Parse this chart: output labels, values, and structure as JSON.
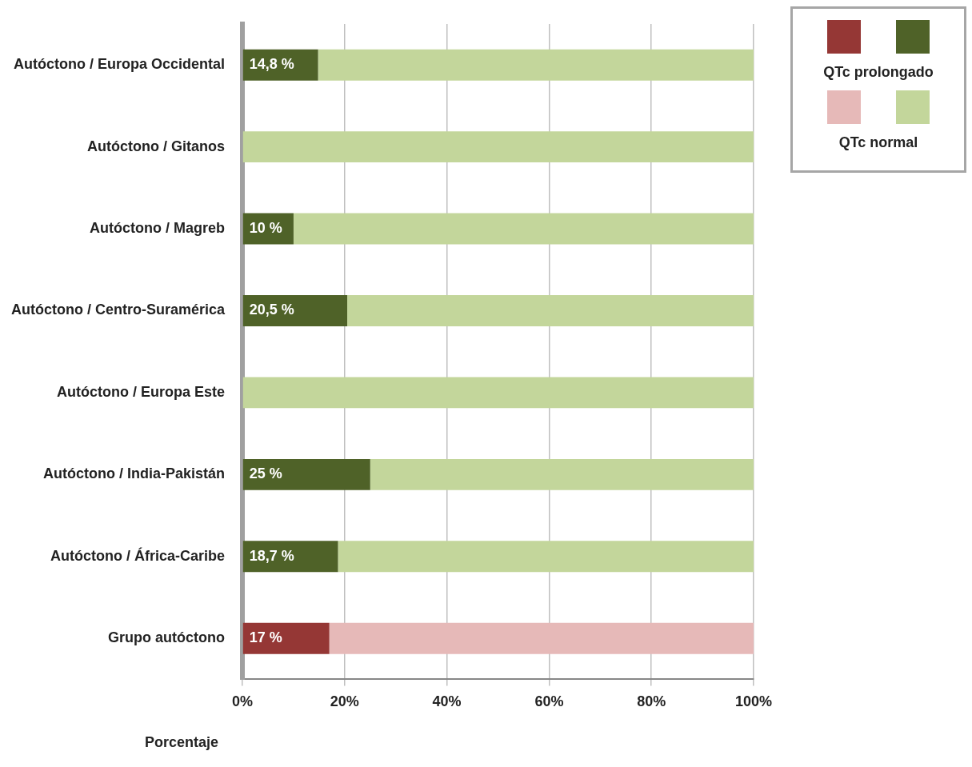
{
  "chart_data": {
    "type": "bar",
    "orientation": "horizontal",
    "stacked": true,
    "xlabel": "Porcentaje",
    "categories": [
      "Autóctono / Europa Occidental",
      "Autóctono / Gitanos",
      "Autóctono / Magreb",
      "Autóctono / Centro-Suramérica",
      "Autóctono / Europa Este",
      "Autóctono / India-Pakistán",
      "Autóctono / África-Caribe",
      "Grupo autóctono"
    ],
    "series": [
      {
        "name": "QTc prolongado",
        "colors": [
          "#4f6228",
          "#4f6228",
          "#4f6228",
          "#4f6228",
          "#4f6228",
          "#4f6228",
          "#4f6228",
          "#953735"
        ],
        "values": [
          14.8,
          0,
          10,
          20.5,
          0,
          25,
          18.7,
          17
        ],
        "value_labels": [
          "14,8 %",
          null,
          "10 %",
          "20,5 %",
          null,
          "25 %",
          "18,7 %",
          "17 %"
        ]
      },
      {
        "name": "QTc normal",
        "colors": [
          "#c3d69b",
          "#c3d69b",
          "#c3d69b",
          "#c3d69b",
          "#c3d69b",
          "#c3d69b",
          "#c3d69b",
          "#e6b9b8"
        ],
        "values": [
          85.2,
          100,
          90,
          79.5,
          100,
          75,
          81.3,
          83
        ]
      }
    ],
    "xlim": [
      0,
      100
    ],
    "xticks": [
      {
        "value": 0,
        "label": "0%"
      },
      {
        "value": 20,
        "label": "20%"
      },
      {
        "value": 40,
        "label": "40%"
      },
      {
        "value": 60,
        "label": "60%"
      },
      {
        "value": 80,
        "label": "80%"
      },
      {
        "value": 100,
        "label": "100%"
      }
    ],
    "grid": "x",
    "legend": "right"
  }
}
